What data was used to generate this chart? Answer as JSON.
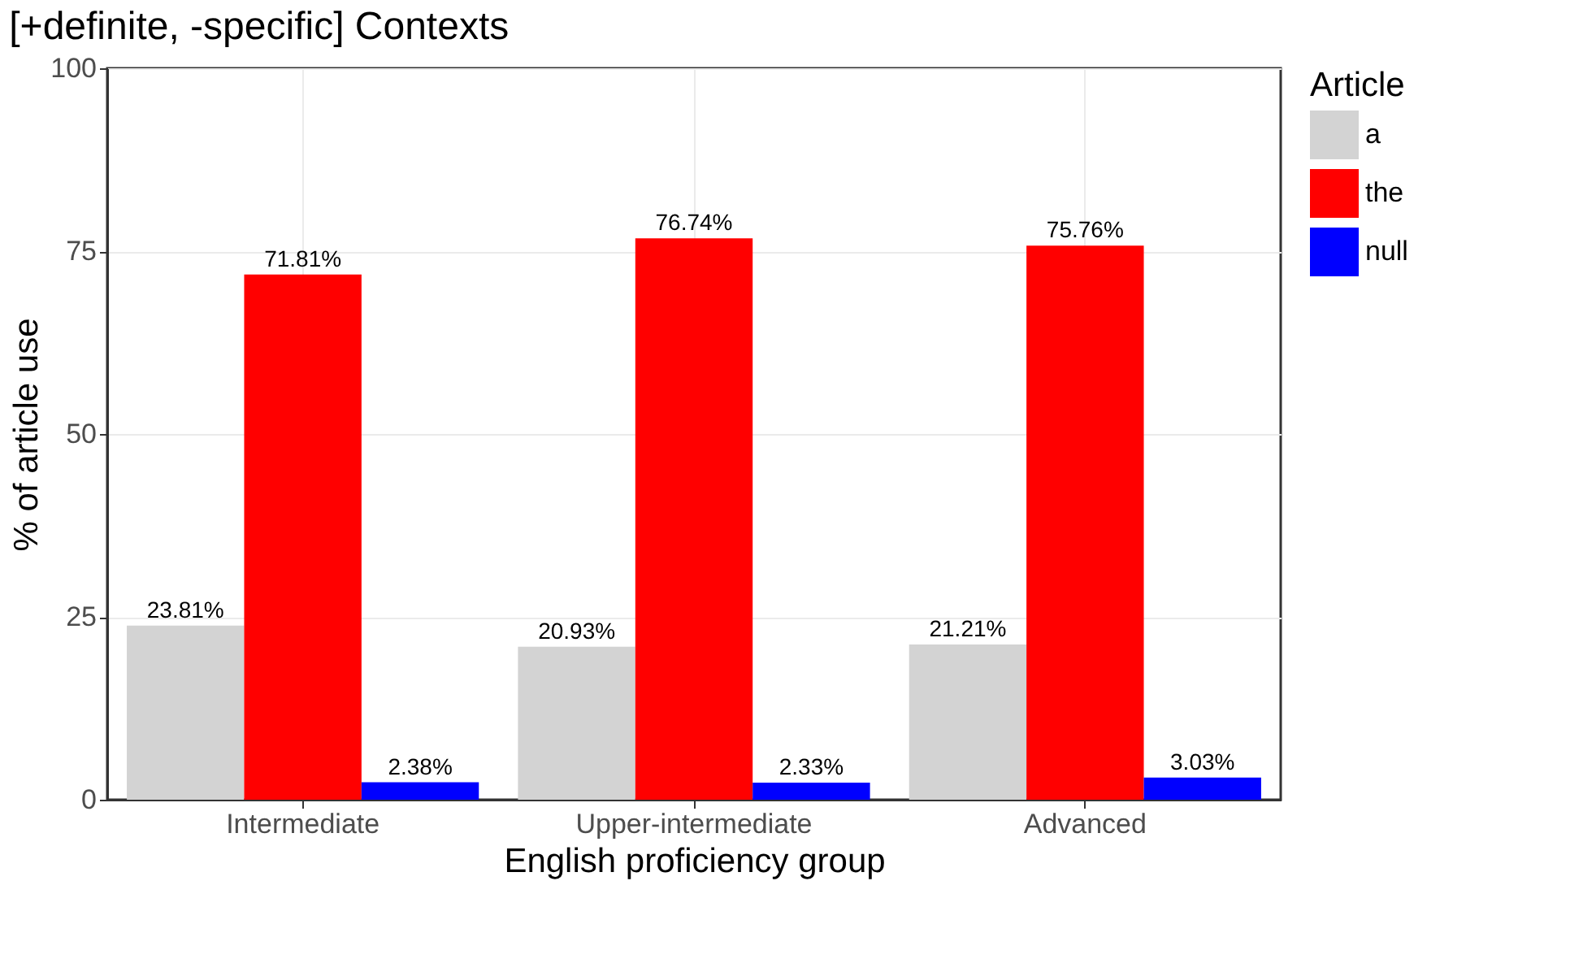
{
  "chart_data": {
    "type": "bar",
    "title": "[+definite, -specific] Contexts",
    "xlabel": "English proficiency group",
    "ylabel": "% of article use",
    "legend_title": "Article",
    "categories": [
      "Intermediate",
      "Upper-intermediate",
      "Advanced"
    ],
    "series": [
      {
        "name": "a",
        "color": "#d3d3d3",
        "values": [
          23.81,
          20.93,
          21.21
        ],
        "value_labels": [
          "23.81%",
          "20.93%",
          "21.21%"
        ]
      },
      {
        "name": "the",
        "color": "#ff0000",
        "values": [
          71.81,
          76.74,
          75.76
        ],
        "value_labels": [
          "71.81%",
          "76.74%",
          "75.76%"
        ]
      },
      {
        "name": "null",
        "color": "#0000ff",
        "values": [
          2.38,
          2.33,
          3.03
        ],
        "value_labels": [
          "2.38%",
          "2.33%",
          "3.03%"
        ]
      }
    ],
    "ylim": [
      0,
      100
    ],
    "yticks": [
      0,
      25,
      50,
      75,
      100
    ],
    "grid": true,
    "legend": "right"
  }
}
